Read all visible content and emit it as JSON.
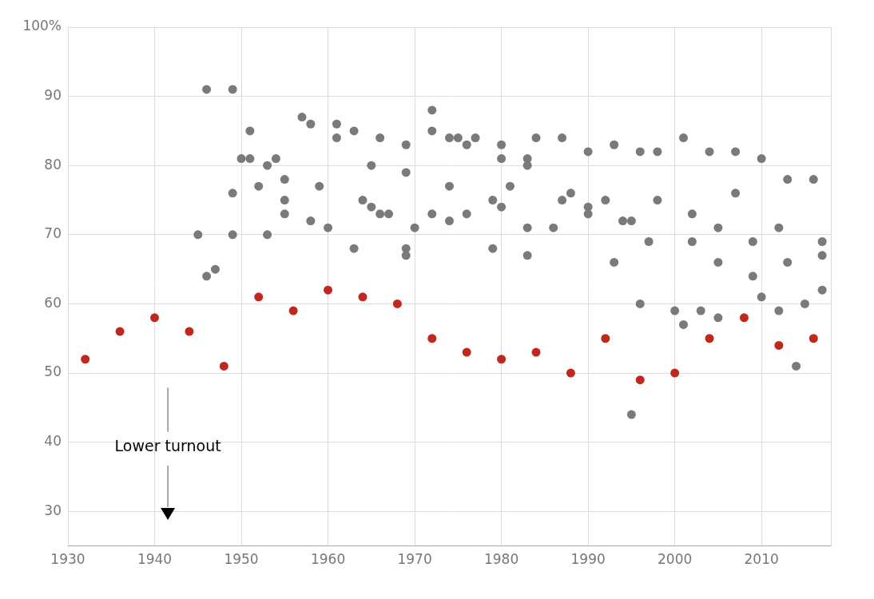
{
  "chart_data": {
    "type": "scatter",
    "annotation": "Lower turnout",
    "xlim": [
      1930,
      2018
    ],
    "xticks": [
      1930,
      1940,
      1950,
      1960,
      1970,
      1980,
      1990,
      2000,
      2010
    ],
    "ylim": [
      25,
      100
    ],
    "yticks": [
      30,
      40,
      50,
      60,
      70,
      80,
      90,
      {
        "value": 100,
        "label": "100%"
      }
    ],
    "grid": true,
    "series": [
      {
        "color": "#7a7a7a",
        "marker": "circle",
        "x": [
          1946,
          1949,
          1945,
          1946,
          1947,
          1949,
          1949,
          1950,
          1951,
          1951,
          1952,
          1953,
          1953,
          1954,
          1955,
          1955,
          1955,
          1957,
          1958,
          1958,
          1959,
          1960,
          1961,
          1961,
          1963,
          1963,
          1964,
          1965,
          1965,
          1966,
          1966,
          1967,
          1969,
          1969,
          1969,
          1969,
          1970,
          1972,
          1972,
          1972,
          1974,
          1974,
          1974,
          1975,
          1976,
          1976,
          1977,
          1979,
          1979,
          1980,
          1980,
          1980,
          1981,
          1983,
          1983,
          1983,
          1983,
          1984,
          1986,
          1987,
          1987,
          1988,
          1990,
          1990,
          1990,
          1992,
          1993,
          1993,
          1994,
          1995,
          1995,
          1996,
          1996,
          1997,
          1998,
          1998,
          2000,
          2001,
          2001,
          2002,
          2002,
          2003,
          2004,
          2005,
          2005,
          2005,
          2007,
          2007,
          2009,
          2009,
          2010,
          2010,
          2012,
          2012,
          2013,
          2013,
          2014,
          2015,
          2016,
          2017,
          2017,
          2017
        ],
        "values": [
          91,
          91,
          70,
          64,
          65,
          76,
          70,
          81,
          81,
          85,
          77,
          80,
          70,
          81,
          78,
          75,
          73,
          87,
          86,
          72,
          77,
          71,
          86,
          84,
          68,
          85,
          75,
          80,
          74,
          73,
          84,
          73,
          83,
          79,
          68,
          67,
          71,
          88,
          85,
          73,
          84,
          77,
          72,
          84,
          83,
          73,
          84,
          75,
          68,
          83,
          81,
          74,
          77,
          81,
          80,
          71,
          67,
          84,
          71,
          84,
          75,
          76,
          82,
          74,
          73,
          75,
          83,
          66,
          72,
          72,
          44,
          82,
          60,
          69,
          82,
          75,
          59,
          84,
          57,
          73,
          69,
          59,
          82,
          71,
          66,
          58,
          82,
          76,
          69,
          64,
          81,
          61,
          71,
          59,
          78,
          66,
          51,
          60,
          78,
          69,
          67,
          62
        ]
      },
      {
        "color": "#c0281e",
        "marker": "circle",
        "x": [
          1932,
          1936,
          1940,
          1944,
          1948,
          1952,
          1956,
          1960,
          1964,
          1968,
          1972,
          1976,
          1980,
          1984,
          1988,
          1992,
          1996,
          2000,
          2004,
          2008,
          2012,
          2016
        ],
        "values": [
          52,
          56,
          58,
          56,
          51,
          61,
          59,
          62,
          61,
          60,
          55,
          53,
          52,
          53,
          50,
          55,
          49,
          50,
          55,
          58,
          54,
          55
        ]
      }
    ]
  }
}
